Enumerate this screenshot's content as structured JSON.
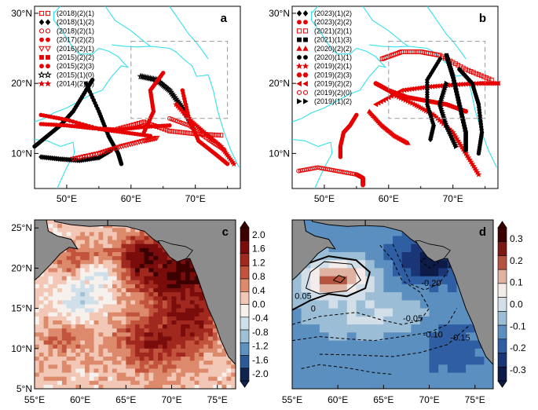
{
  "chart_data": [
    {
      "panel": "a",
      "type": "scatter",
      "title": "a",
      "x_ticks": [
        "50°E",
        "60°E",
        "70°E"
      ],
      "x_tick_values": [
        50,
        60,
        70
      ],
      "y_ticks": [
        "30°N",
        "20°N",
        "10°N"
      ],
      "y_tick_values": [
        30,
        20,
        10
      ],
      "xlim": [
        45,
        77
      ],
      "ylim": [
        5,
        31
      ],
      "dashed_box": {
        "lon": [
          60,
          75
        ],
        "lat": [
          15,
          26
        ]
      },
      "legend": [
        {
          "label": "(2018)(2)(1)",
          "marker": "square-open",
          "color": "#e60000"
        },
        {
          "label": "(2018)(1)(2)",
          "marker": "diamond",
          "color": "#000000"
        },
        {
          "label": "(2018)(2)(1)",
          "marker": "circle-open",
          "color": "#e60000"
        },
        {
          "label": "(2017)(2)(2)",
          "marker": "circle",
          "color": "#e60000"
        },
        {
          "label": "(2016)(2)(1)",
          "marker": "triangle-down-open",
          "color": "#e60000"
        },
        {
          "label": "(2015)(2)(2)",
          "marker": "square",
          "color": "#e60000"
        },
        {
          "label": "(2015)(2)(3)",
          "marker": "circle",
          "color": "#e60000"
        },
        {
          "label": "(2015)(1)(0)",
          "marker": "star-open",
          "color": "#000000"
        },
        {
          "label": "(2014)(2)(2)",
          "marker": "star",
          "color": "#e60000"
        }
      ],
      "tracks": [
        {
          "color": "#000000",
          "marker": "circle",
          "points": [
            [
              45,
              11
            ],
            [
              47,
              12.5
            ],
            [
              49,
              14
            ],
            [
              51,
              16
            ],
            [
              53,
              19
            ],
            [
              54,
              20.5
            ]
          ]
        },
        {
          "color": "#000000",
          "marker": "diamond",
          "points": [
            [
              46,
              9.5
            ],
            [
              49,
              9.2
            ],
            [
              52,
              9.0
            ],
            [
              55,
              9.4
            ],
            [
              57,
              10.5
            ]
          ]
        },
        {
          "color": "#000000",
          "marker": "circle",
          "points": [
            [
              53,
              20
            ],
            [
              55,
              16
            ],
            [
              56.5,
              12.5
            ],
            [
              58,
              10
            ],
            [
              58.5,
              8.5
            ]
          ]
        },
        {
          "color": "#000000",
          "marker": "star-open",
          "points": [
            [
              61.5,
              21
            ],
            [
              64,
              20.5
            ],
            [
              66,
              19
            ],
            [
              68,
              16.5
            ],
            [
              69.5,
              14
            ]
          ]
        },
        {
          "color": "#e60000",
          "marker": "circle",
          "points": [
            [
              46,
              14.2
            ],
            [
              50,
              14
            ],
            [
              54,
              13.6
            ],
            [
              58,
              13.4
            ],
            [
              62,
              13.8
            ],
            [
              66,
              14
            ]
          ]
        },
        {
          "color": "#e60000",
          "marker": "circle",
          "points": [
            [
              62,
              13
            ],
            [
              63.5,
              16
            ],
            [
              63,
              19
            ],
            [
              65,
              21.5
            ]
          ]
        },
        {
          "color": "#e60000",
          "marker": "circle",
          "points": [
            [
              46,
              15.5
            ],
            [
              50,
              14.8
            ],
            [
              55,
              13.5
            ],
            [
              59,
              13
            ],
            [
              63,
              12.5
            ]
          ]
        },
        {
          "color": "#e60000",
          "marker": "square-open",
          "points": [
            [
              58,
              13.5
            ],
            [
              62,
              14.5
            ],
            [
              66,
              13.2
            ],
            [
              70,
              12.8
            ],
            [
              74,
              12.6
            ]
          ]
        },
        {
          "color": "#e60000",
          "marker": "circle-open",
          "points": [
            [
              66,
              15
            ],
            [
              69,
              14
            ],
            [
              72,
              12
            ],
            [
              74.5,
              10.5
            ]
          ]
        },
        {
          "color": "#e60000",
          "marker": "triangle-down-open",
          "points": [
            [
              51,
              9.2
            ],
            [
              55,
              10
            ],
            [
              58.5,
              11
            ],
            [
              62,
              11.8
            ],
            [
              64,
              12.2
            ]
          ]
        },
        {
          "color": "#e60000",
          "marker": "circle",
          "points": [
            [
              68,
              19
            ],
            [
              69,
              15
            ],
            [
              70.5,
              11.8
            ],
            [
              73,
              10
            ],
            [
              75,
              8.5
            ]
          ]
        },
        {
          "color": "#e60000",
          "marker": "star",
          "points": [
            [
              67,
              17
            ],
            [
              69.5,
              14.5
            ],
            [
              72,
              12.5
            ],
            [
              74,
              11
            ],
            [
              76,
              8.5
            ]
          ]
        }
      ]
    },
    {
      "panel": "b",
      "type": "scatter",
      "title": "b",
      "x_ticks": [
        "50°E",
        "60°E",
        "70°E"
      ],
      "x_tick_values": [
        50,
        60,
        70
      ],
      "y_ticks": [
        "30°N",
        "20°N",
        "10°N"
      ],
      "y_tick_values": [
        30,
        20,
        10
      ],
      "xlim": [
        45,
        77
      ],
      "ylim": [
        5,
        31
      ],
      "dashed_box": {
        "lon": [
          60,
          75
        ],
        "lat": [
          15,
          26
        ]
      },
      "legend": [
        {
          "label": "(2023)(1)(2)",
          "marker": "diamond",
          "color": "#000000"
        },
        {
          "label": "(2023)(2)(2)",
          "marker": "circle",
          "color": "#e60000"
        },
        {
          "label": "(2021)(2)(1)",
          "marker": "square-open",
          "color": "#e60000"
        },
        {
          "label": "(2021)(1)(3)",
          "marker": "square",
          "color": "#000000"
        },
        {
          "label": "(2020)(2)(2)",
          "marker": "triangle",
          "color": "#e60000"
        },
        {
          "label": "(2020)(1)(1)",
          "marker": "circle",
          "color": "#000000"
        },
        {
          "label": "(2019)(2)(1)",
          "marker": "star",
          "color": "#e60000"
        },
        {
          "label": "(2019)(2)(3)",
          "marker": "hexagon",
          "color": "#e60000"
        },
        {
          "label": "(2019)(2)(2)",
          "marker": "triangle-left",
          "color": "#e60000"
        },
        {
          "label": "(2019)(2)(0)",
          "marker": "circle-open",
          "color": "#e60000"
        },
        {
          "label": "(2019)(1)(2)",
          "marker": "triangle-right",
          "color": "#000000"
        }
      ],
      "tracks": [
        {
          "color": "#e60000",
          "marker": "square-open",
          "points": [
            [
              59,
              23.5
            ],
            [
              62,
              24.5
            ],
            [
              65,
              24.5
            ],
            [
              68,
              24
            ],
            [
              72,
              22
            ],
            [
              76,
              20.5
            ]
          ]
        },
        {
          "color": "#e60000",
          "marker": "triangle-left",
          "points": [
            [
              58,
              17
            ],
            [
              62,
              19
            ],
            [
              66,
              19.5
            ],
            [
              70,
              19.8
            ],
            [
              74,
              20
            ],
            [
              77,
              20
            ]
          ]
        },
        {
          "color": "#e60000",
          "marker": "hexagon",
          "points": [
            [
              58,
              20
            ],
            [
              60,
              19
            ],
            [
              63,
              18
            ],
            [
              66,
              17.5
            ],
            [
              69,
              17
            ],
            [
              72,
              16
            ]
          ]
        },
        {
          "color": "#e60000",
          "marker": "circle",
          "points": [
            [
              55,
              15.5
            ],
            [
              54,
              14
            ],
            [
              53,
              13
            ],
            [
              52.5,
              11
            ],
            [
              52.5,
              9.5
            ]
          ]
        },
        {
          "color": "#e60000",
          "marker": "triangle",
          "points": [
            [
              57,
              16
            ],
            [
              59,
              14
            ],
            [
              61,
              12.5
            ],
            [
              63,
              11.5
            ]
          ]
        },
        {
          "color": "#e60000",
          "marker": "star",
          "points": [
            [
              60.5,
              18.5
            ],
            [
              64,
              17
            ],
            [
              67,
              15.5
            ],
            [
              70,
              13
            ],
            [
              72,
              10
            ],
            [
              74,
              7
            ]
          ]
        },
        {
          "color": "#e60000",
          "marker": "circle-open",
          "points": [
            [
              46,
              7.5
            ],
            [
              49,
              8
            ],
            [
              52,
              7.5
            ],
            [
              55,
              7
            ],
            [
              56,
              6.5
            ],
            [
              56,
              5.5
            ]
          ]
        },
        {
          "color": "#000000",
          "marker": "diamond",
          "points": [
            [
              68,
              23.5
            ],
            [
              66,
              20.5
            ],
            [
              66,
              17
            ],
            [
              67,
              14
            ],
            [
              66.5,
              12
            ]
          ]
        },
        {
          "color": "#000000",
          "marker": "square",
          "points": [
            [
              69,
              24
            ],
            [
              70,
              21
            ],
            [
              71,
              17
            ],
            [
              72,
              13
            ],
            [
              72,
              10.5
            ]
          ]
        },
        {
          "color": "#000000",
          "marker": "circle",
          "points": [
            [
              71,
              22
            ],
            [
              73,
              20
            ],
            [
              74,
              17
            ],
            [
              74.5,
              13
            ],
            [
              74,
              10
            ]
          ]
        },
        {
          "color": "#000000",
          "marker": "triangle-right",
          "points": [
            [
              69,
              20
            ],
            [
              68,
              17
            ],
            [
              69,
              14
            ],
            [
              70.5,
              11
            ]
          ]
        }
      ]
    },
    {
      "panel": "c",
      "type": "heatmap",
      "title": "c",
      "x_ticks": [
        "55°E",
        "60°E",
        "65°E",
        "70°E",
        "75°E"
      ],
      "x_tick_values": [
        55,
        60,
        65,
        70,
        75
      ],
      "y_ticks": [
        "25°N",
        "20°N",
        "15°N",
        "10°N",
        "5°N"
      ],
      "y_tick_values": [
        25,
        20,
        15,
        10,
        5
      ],
      "xlim": [
        55,
        77
      ],
      "ylim": [
        5,
        26
      ],
      "colorbar": {
        "labels": [
          "2.0",
          "1.6",
          "1.2",
          "0.8",
          "0.4",
          "0.0",
          "-0.4",
          "-0.8",
          "-1.2",
          "-1.6",
          "-2.0"
        ],
        "levels": [
          2.0,
          1.6,
          1.2,
          0.8,
          0.4,
          0.0,
          -0.4,
          -0.8,
          -1.2,
          -1.6,
          -2.0
        ],
        "colors": [
          "#3d0000",
          "#7a0c0c",
          "#a0281e",
          "#c2533c",
          "#dd8a6c",
          "#f2c7b6",
          "#f7f1ed",
          "#cfe0ea",
          "#9fc1d8",
          "#5e92bf",
          "#2c5a97",
          "#10244f"
        ]
      },
      "blobs": [
        {
          "lon": 71,
          "lat": 19,
          "value": 1.9,
          "rlon": 4,
          "rlat": 4
        },
        {
          "lon": 67,
          "lat": 21,
          "value": 1.7,
          "rlon": 3,
          "rlat": 3
        },
        {
          "lon": 68,
          "lat": 11,
          "value": 1.3,
          "rlon": 4,
          "rlat": 3.5
        },
        {
          "lon": 72,
          "lat": 14,
          "value": 1.5,
          "rlon": 3,
          "rlat": 4
        },
        {
          "lon": 58,
          "lat": 11,
          "value": 0.7,
          "rlon": 3,
          "rlat": 2
        },
        {
          "lon": 60,
          "lat": 21,
          "value": 0.8,
          "rlon": 3,
          "rlat": 2
        },
        {
          "lon": 60,
          "lat": 16,
          "value": -0.6,
          "rlon": 2.5,
          "rlat": 2
        },
        {
          "lon": 62,
          "lat": 19,
          "value": -0.4,
          "rlon": 2,
          "rlat": 1.5
        },
        {
          "lon": 56,
          "lat": 7,
          "value": 0.3,
          "rlon": 3,
          "rlat": 2
        }
      ]
    },
    {
      "panel": "d",
      "type": "heatmap",
      "title": "d",
      "x_ticks": [
        "55°E",
        "60°E",
        "65°E",
        "70°E",
        "75°E"
      ],
      "x_tick_values": [
        55,
        60,
        65,
        70,
        75
      ],
      "y_ticks": [],
      "xlim": [
        55,
        77
      ],
      "ylim": [
        5,
        26
      ],
      "colorbar": {
        "labels": [
          "0.3",
          "0.2",
          "0.1",
          "0.0",
          "-0.1",
          "-0.2",
          "-0.3"
        ],
        "levels": [
          0.3,
          0.2,
          0.1,
          0.0,
          -0.1,
          -0.2,
          -0.3
        ],
        "colors": [
          "#3d0000",
          "#7a1a14",
          "#b55540",
          "#e0b2a2",
          "#f3ecea",
          "#d2dfe8",
          "#9cbdd6",
          "#5b8fc0",
          "#2f5ea3",
          "#1b3676",
          "#0d1b48"
        ]
      },
      "contour_labels": [
        "0.05",
        "0",
        "-0.20",
        "-0.05",
        "-0.10",
        "-0.15"
      ],
      "bands": [
        {
          "lat_top": 26,
          "lat_bottom": 5,
          "value": -0.12
        },
        {
          "lat_top": 13,
          "lat_bottom": 5,
          "value": -0.12
        }
      ],
      "blobs": [
        {
          "lon": 60,
          "lat": 18.5,
          "value": 0.12,
          "rlon": 4,
          "rlat": 3
        },
        {
          "lon": 60,
          "lat": 18.5,
          "value": 0.2,
          "rlon": 1.8,
          "rlat": 1.2
        },
        {
          "lon": 64,
          "lat": 14,
          "value": -0.02,
          "rlon": 7,
          "rlat": 3
        },
        {
          "lon": 70,
          "lat": 21,
          "value": -0.24,
          "rlon": 4,
          "rlat": 3
        },
        {
          "lon": 70,
          "lat": 20.5,
          "value": -0.3,
          "rlon": 1.5,
          "rlat": 1
        },
        {
          "lon": 72,
          "lat": 10,
          "value": -0.16,
          "rlon": 4,
          "rlat": 4
        },
        {
          "lon": 63,
          "lat": 8,
          "value": -0.1,
          "rlon": 6,
          "rlat": 2.5
        }
      ]
    }
  ]
}
